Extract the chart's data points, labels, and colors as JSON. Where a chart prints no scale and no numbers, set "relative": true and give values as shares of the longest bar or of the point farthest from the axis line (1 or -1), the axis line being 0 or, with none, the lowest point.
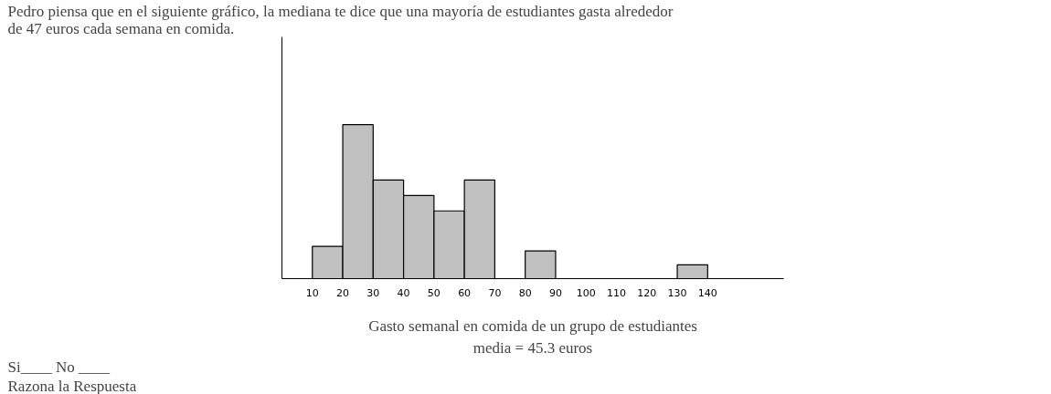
{
  "chart_data": {
    "type": "bar",
    "title": "Pedro piensa que en el siguiente gráfico, la mediana te dice que una mayoría de estudiantes gasta alrededor\nde 47 euros cada semana en comida.",
    "xlabel": "Gasto semanal en comida de un grupo de estudiantes",
    "subtitle": "media = 45.3 euros",
    "annotations": [
      "Si____ No ____",
      "Razona la Respuesta"
    ],
    "relative": true,
    "x": [
      15,
      25,
      35,
      45,
      55,
      65,
      85,
      135
    ],
    "values": [
      0.21,
      1,
      0.64,
      0.54,
      0.44,
      0.64,
      0.18,
      0.09
    ],
    "color": "#c0c0c0",
    "xlim": [
      0,
      165
    ],
    "xticks": [
      10,
      20,
      30,
      40,
      50,
      60,
      70,
      80,
      90,
      100,
      110,
      120,
      130,
      140
    ],
    "grid": false
  }
}
